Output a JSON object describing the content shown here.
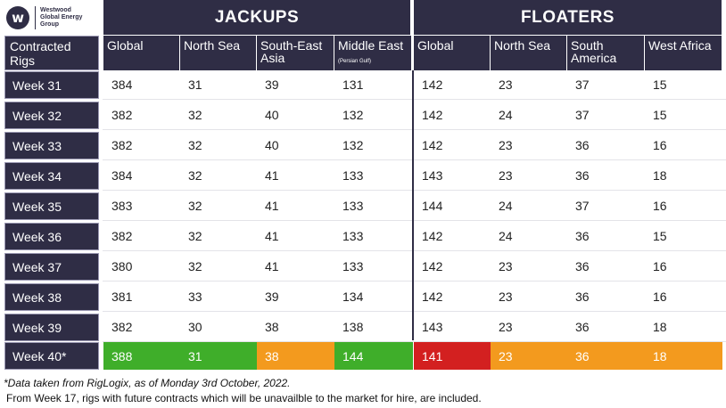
{
  "logo": {
    "lines": [
      "Westwood",
      "Global Energy",
      "Group"
    ]
  },
  "groups": {
    "jackups": "JACKUPS",
    "floaters": "FLOATERS"
  },
  "row_header": "Contracted Rigs",
  "columns": [
    {
      "label": "Global",
      "small": ""
    },
    {
      "label": "North Sea",
      "small": ""
    },
    {
      "label": "South-East Asia",
      "small": ""
    },
    {
      "label": "Middle East",
      "small": "(Persian Gulf)"
    },
    {
      "label": "Global",
      "small": ""
    },
    {
      "label": "North Sea",
      "small": ""
    },
    {
      "label": "South America",
      "small": ""
    },
    {
      "label": "West Africa",
      "small": ""
    }
  ],
  "rows": [
    {
      "week": "Week 31",
      "values": [
        "384",
        "31",
        "39",
        "131",
        "142",
        "23",
        "37",
        "15"
      ]
    },
    {
      "week": "Week 32",
      "values": [
        "382",
        "32",
        "40",
        "132",
        "142",
        "24",
        "37",
        "15"
      ]
    },
    {
      "week": "Week 33",
      "values": [
        "382",
        "32",
        "40",
        "132",
        "142",
        "23",
        "36",
        "16"
      ]
    },
    {
      "week": "Week 34",
      "values": [
        "384",
        "32",
        "41",
        "133",
        "143",
        "23",
        "36",
        "18"
      ]
    },
    {
      "week": "Week 35",
      "values": [
        "383",
        "32",
        "41",
        "133",
        "144",
        "24",
        "37",
        "16"
      ]
    },
    {
      "week": "Week 36",
      "values": [
        "382",
        "32",
        "41",
        "133",
        "142",
        "24",
        "36",
        "15"
      ]
    },
    {
      "week": "Week 37",
      "values": [
        "380",
        "32",
        "41",
        "133",
        "142",
        "23",
        "36",
        "16"
      ]
    },
    {
      "week": "Week 38",
      "values": [
        "381",
        "33",
        "39",
        "134",
        "142",
        "23",
        "36",
        "16"
      ]
    },
    {
      "week": "Week 39",
      "values": [
        "382",
        "30",
        "38",
        "138",
        "143",
        "23",
        "36",
        "18"
      ]
    }
  ],
  "current_row": {
    "week": "Week 40*",
    "values": [
      "388",
      "31",
      "38",
      "144",
      "141",
      "23",
      "36",
      "18"
    ],
    "colors": [
      "#3fae2a",
      "#3fae2a",
      "#f39a1e",
      "#3fae2a",
      "#d32020",
      "#f39a1e",
      "#f39a1e",
      "#f39a1e"
    ]
  },
  "footnote": {
    "line1": "*Data taken from RigLogix, as of Monday 3rd October, 2022.",
    "line2": "From Week 17, rigs with future contracts which will be unavailble to the market for hire, are included."
  },
  "colors": {
    "header_bg": "#2f2d45",
    "label_border": "#9b99b3"
  }
}
